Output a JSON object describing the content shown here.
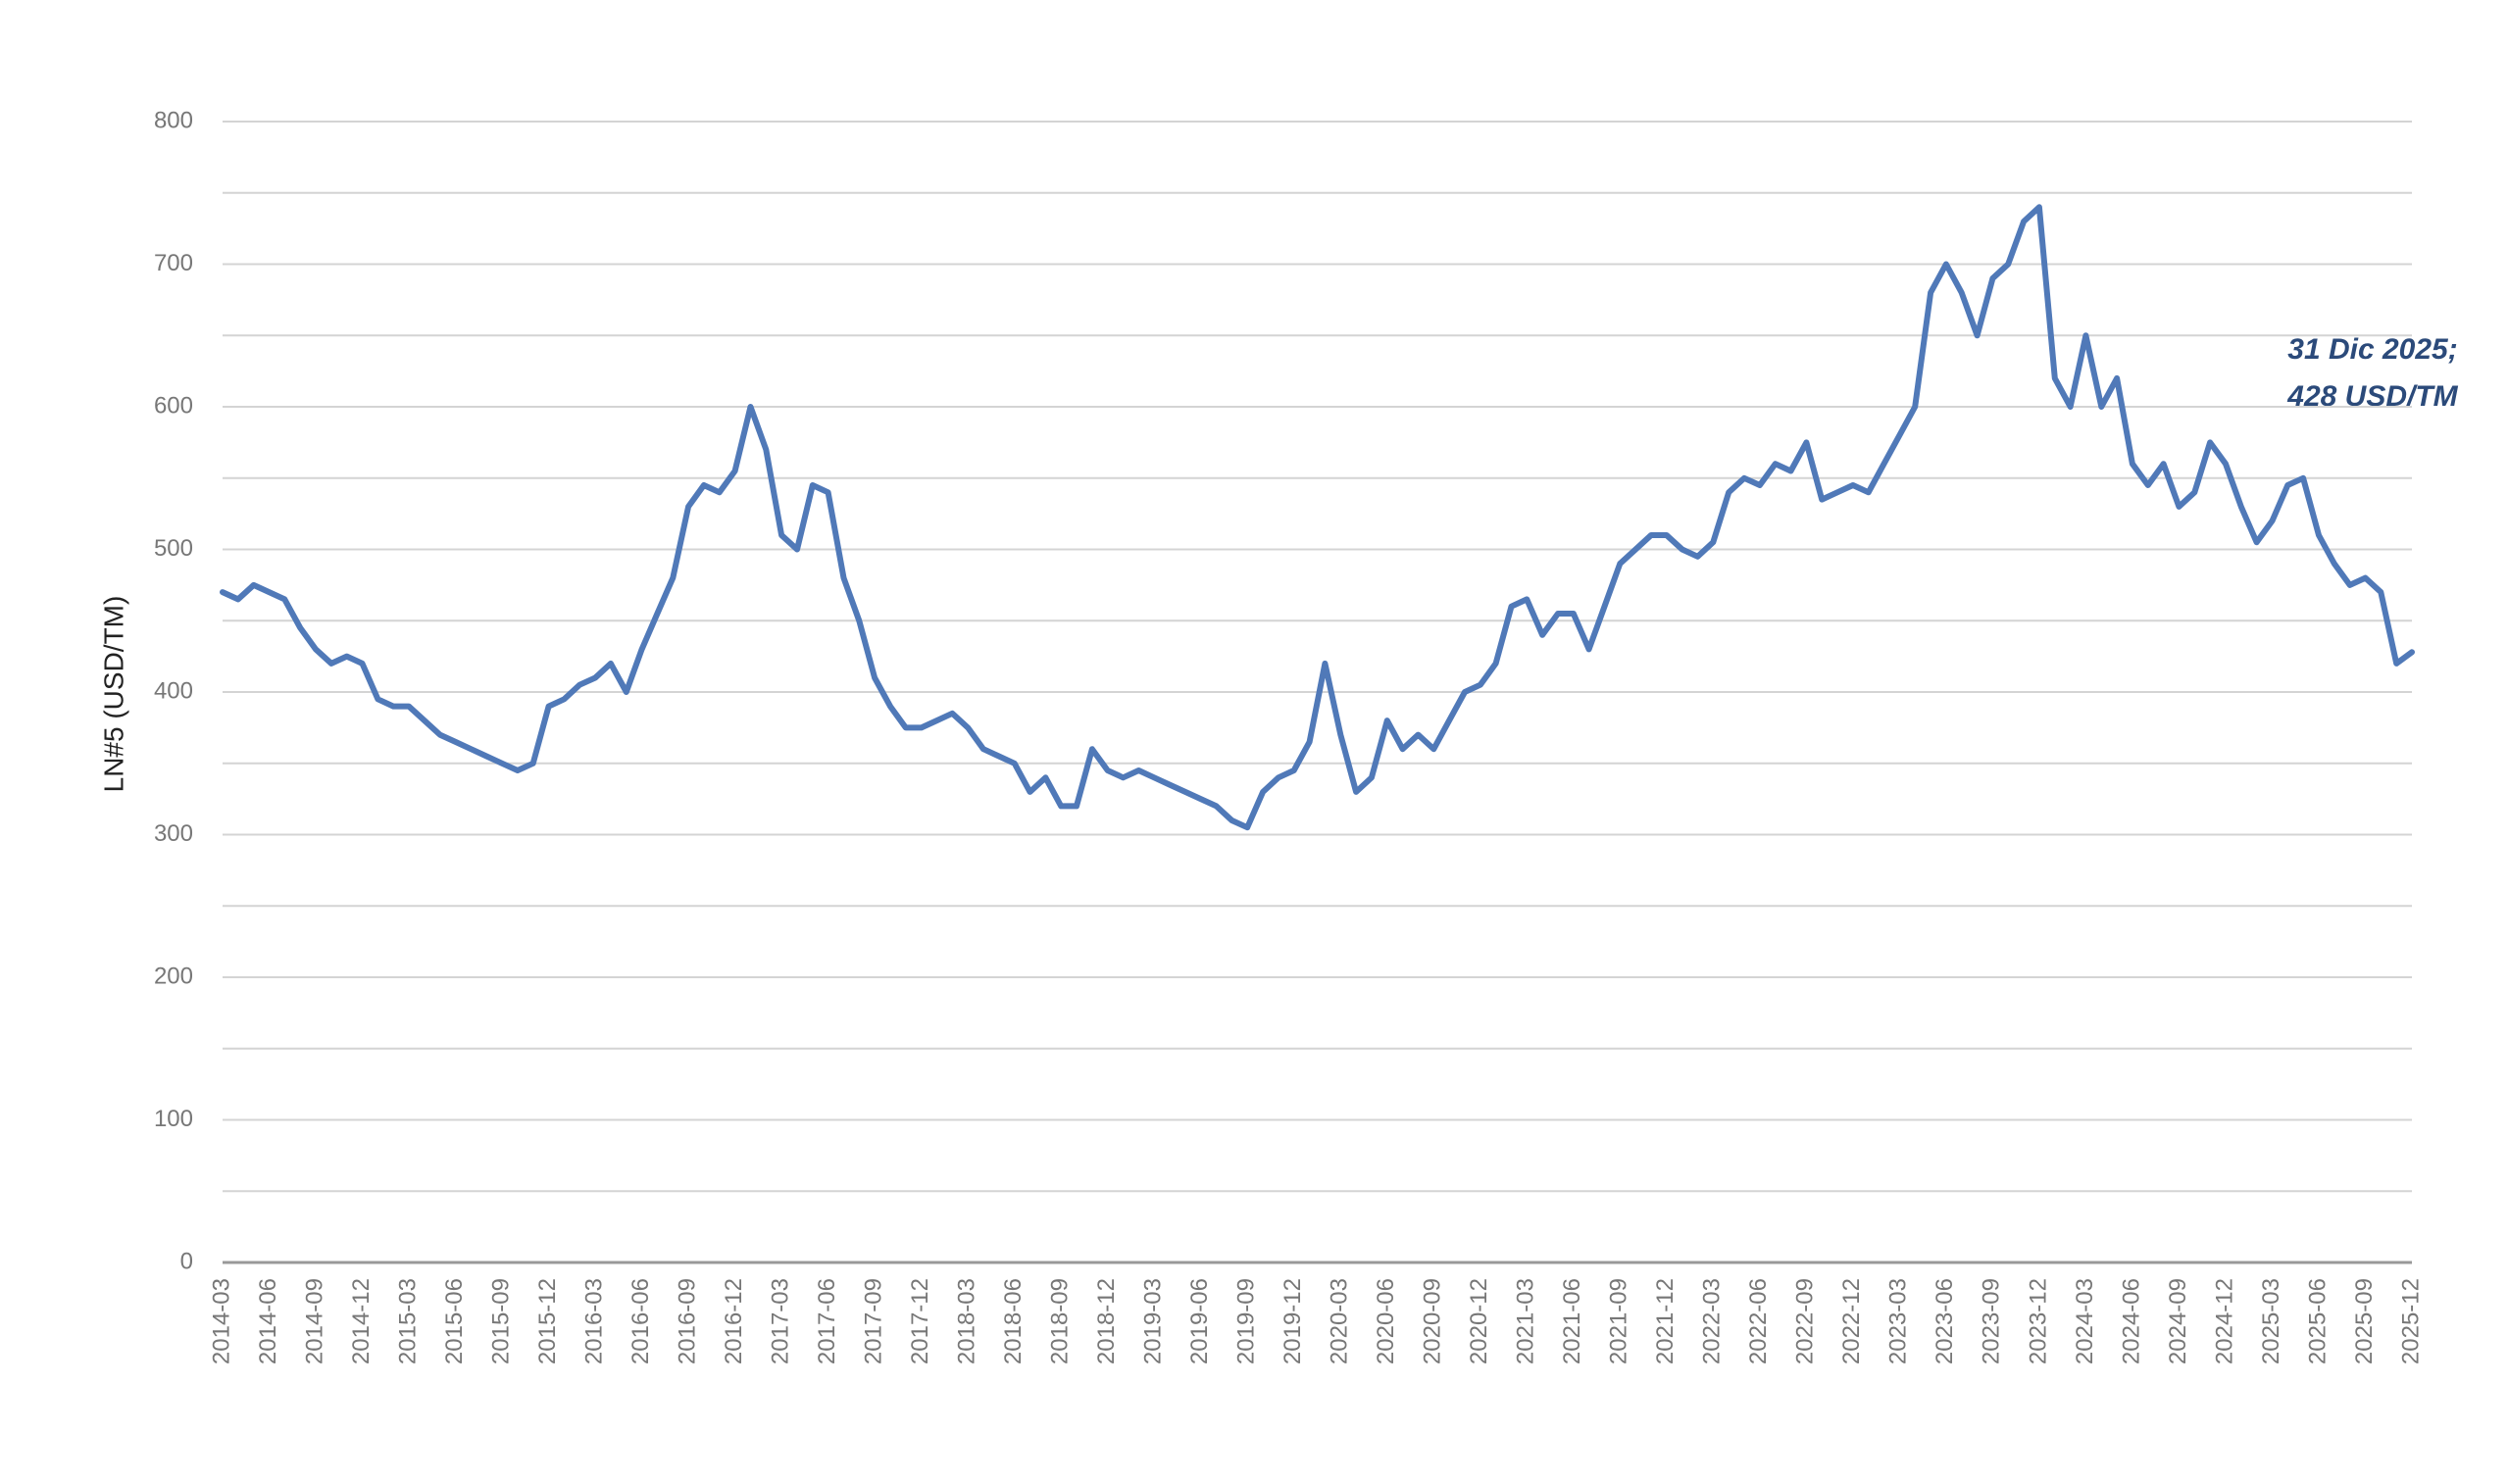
{
  "chart_data": {
    "type": "line",
    "y_axis_label": "LN#5 (USD/TM)",
    "annotation": [
      "31 Dic 2025;",
      "428 USD/TM"
    ],
    "categories": [
      "2014-03",
      null,
      null,
      "2014-06",
      null,
      null,
      "2014-09",
      null,
      null,
      "2014-12",
      null,
      null,
      "2015-03",
      null,
      null,
      "2015-06",
      null,
      null,
      "2015-09",
      null,
      null,
      "2015-12",
      null,
      null,
      "2016-03",
      null,
      null,
      "2016-06",
      null,
      null,
      "2016-09",
      null,
      null,
      "2016-12",
      null,
      null,
      "2017-03",
      null,
      null,
      "2017-06",
      null,
      null,
      "2017-09",
      null,
      null,
      "2017-12",
      null,
      null,
      "2018-03",
      null,
      null,
      "2018-06",
      null,
      null,
      "2018-09",
      null,
      null,
      "2018-12",
      null,
      null,
      "2019-03",
      null,
      null,
      "2019-06",
      null,
      null,
      "2019-09",
      null,
      null,
      "2019-12",
      null,
      null,
      "2020-03",
      null,
      null,
      "2020-06",
      null,
      null,
      "2020-09",
      null,
      null,
      "2020-12",
      null,
      null,
      "2021-03",
      null,
      null,
      "2021-06",
      null,
      null,
      "2021-09",
      null,
      null,
      "2021-12",
      null,
      null,
      "2022-03",
      null,
      null,
      "2022-06",
      null,
      null,
      "2022-09",
      null,
      null,
      "2022-12",
      null,
      null,
      "2023-03",
      null,
      null,
      "2023-06",
      null,
      null,
      "2023-09",
      null,
      null,
      "2023-12",
      null,
      null,
      "2024-03",
      null,
      null,
      "2024-06",
      null,
      null,
      "2024-09",
      null,
      null,
      "2024-12",
      null,
      null,
      "2025-03",
      null,
      null,
      "2025-06",
      null,
      null,
      "2025-09",
      null,
      null,
      "2025-12"
    ],
    "series": [
      {
        "name": "LN#5",
        "color": "#5079b8",
        "values": [
          470,
          465,
          475,
          470,
          465,
          445,
          430,
          420,
          425,
          420,
          395,
          390,
          390,
          380,
          370,
          365,
          360,
          355,
          350,
          345,
          350,
          390,
          395,
          405,
          410,
          420,
          400,
          430,
          455,
          480,
          530,
          545,
          540,
          555,
          600,
          570,
          510,
          500,
          545,
          540,
          480,
          450,
          410,
          390,
          375,
          375,
          380,
          385,
          375,
          360,
          355,
          350,
          330,
          340,
          320,
          320,
          360,
          345,
          340,
          345,
          340,
          335,
          330,
          325,
          320,
          310,
          305,
          330,
          340,
          345,
          365,
          420,
          370,
          330,
          340,
          380,
          360,
          370,
          360,
          380,
          400,
          405,
          420,
          460,
          465,
          440,
          455,
          455,
          430,
          460,
          490,
          500,
          510,
          510,
          500,
          495,
          505,
          540,
          550,
          545,
          560,
          555,
          575,
          535,
          540,
          545,
          540,
          560,
          580,
          600,
          680,
          700,
          680,
          650,
          690,
          700,
          730,
          740,
          620,
          600,
          650,
          600,
          620,
          560,
          545,
          560,
          530,
          540,
          575,
          560,
          530,
          505,
          520,
          545,
          550,
          510,
          490,
          475,
          480,
          470,
          420,
          428
        ]
      }
    ],
    "ylim": [
      0,
      800
    ],
    "yticks": [
      0,
      100,
      200,
      300,
      400,
      500,
      600,
      700,
      800
    ],
    "minor_yticks": [
      50,
      150,
      250,
      350,
      450,
      550,
      650,
      750
    ],
    "grid": true
  }
}
